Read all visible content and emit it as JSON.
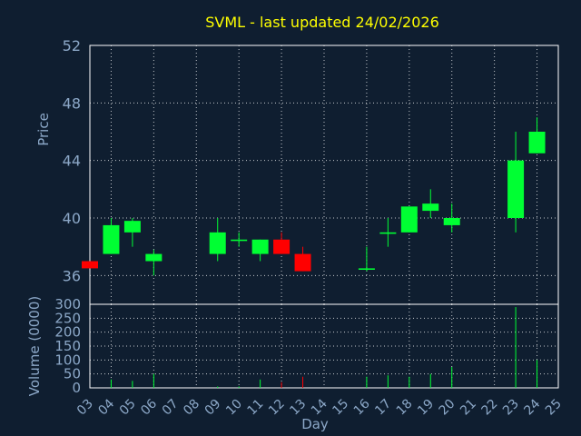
{
  "chart_data": {
    "type": "candlestick",
    "title": "SVML - last updated 24/02/2026",
    "price_panel": {
      "ylabel": "Price",
      "ylim": [
        34,
        52
      ],
      "yticks": [
        36,
        40,
        44,
        48,
        52
      ],
      "grid": true
    },
    "volume_panel": {
      "ylabel": "Volume (0000)",
      "ylim": [
        0,
        300
      ],
      "yticks": [
        0,
        50,
        100,
        150,
        200,
        250,
        300
      ],
      "grid": true
    },
    "xlabel": "Day",
    "x_range": [
      3,
      25
    ],
    "x_ticks": [
      "03",
      "04",
      "05",
      "06",
      "07",
      "08",
      "09",
      "10",
      "11",
      "12",
      "13",
      "14",
      "15",
      "16",
      "17",
      "18",
      "19",
      "20",
      "21",
      "22",
      "23",
      "24",
      "25"
    ],
    "up_color": "#00ff33",
    "down_color": "#ff0000",
    "candles": [
      {
        "day": 3,
        "open": 37.0,
        "high": 37.0,
        "low": 36.5,
        "close": 36.5,
        "volume": 0
      },
      {
        "day": 4,
        "open": 37.5,
        "high": 40.0,
        "low": 37.5,
        "close": 39.5,
        "volume": 30
      },
      {
        "day": 5,
        "open": 39.0,
        "high": 40.0,
        "low": 38.0,
        "close": 39.8,
        "volume": 25
      },
      {
        "day": 6,
        "open": 37.0,
        "high": 37.8,
        "low": 36.0,
        "close": 37.5,
        "volume": 50
      },
      {
        "day": 9,
        "open": 37.5,
        "high": 40.0,
        "low": 37.0,
        "close": 39.0,
        "volume": 5
      },
      {
        "day": 10,
        "open": 38.4,
        "high": 39.0,
        "low": 38.0,
        "close": 38.5,
        "volume": 5
      },
      {
        "day": 11,
        "open": 37.5,
        "high": 38.5,
        "low": 37.0,
        "close": 38.5,
        "volume": 30
      },
      {
        "day": 12,
        "open": 38.5,
        "high": 39.0,
        "low": 37.5,
        "close": 37.5,
        "volume": 20
      },
      {
        "day": 13,
        "open": 37.5,
        "high": 38.0,
        "low": 36.3,
        "close": 36.3,
        "volume": 40
      },
      {
        "day": 16,
        "open": 36.4,
        "high": 38.0,
        "low": 36.3,
        "close": 36.5,
        "volume": 40
      },
      {
        "day": 17,
        "open": 38.9,
        "high": 40.0,
        "low": 38.0,
        "close": 39.0,
        "volume": 45
      },
      {
        "day": 18,
        "open": 39.0,
        "high": 40.8,
        "low": 39.0,
        "close": 40.8,
        "volume": 40
      },
      {
        "day": 19,
        "open": 40.5,
        "high": 42.0,
        "low": 40.0,
        "close": 41.0,
        "volume": 50
      },
      {
        "day": 20,
        "open": 39.5,
        "high": 41.0,
        "low": 39.0,
        "close": 40.0,
        "volume": 75
      },
      {
        "day": 23,
        "open": 40.0,
        "high": 46.0,
        "low": 39.0,
        "close": 44.0,
        "volume": 290
      },
      {
        "day": 24,
        "open": 44.5,
        "high": 47.0,
        "low": 44.5,
        "close": 46.0,
        "volume": 100
      }
    ]
  }
}
